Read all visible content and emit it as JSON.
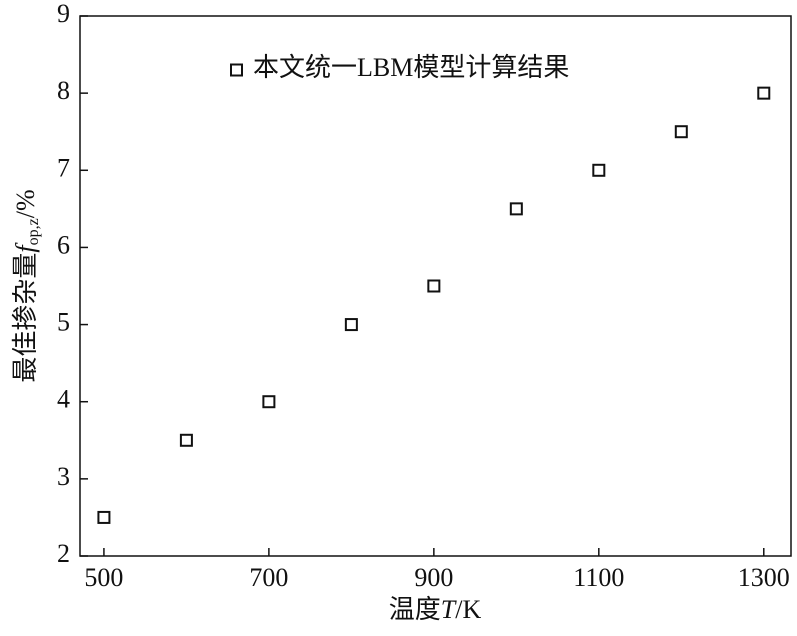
{
  "chart_data": {
    "type": "scatter",
    "xlabel": {
      "text": "温度",
      "var": "T",
      "unit": "/K"
    },
    "ylabel": {
      "text": "最佳掺杂量",
      "var": "f",
      "sub": "op,z",
      "unit": "/%"
    },
    "series": [
      {
        "name": "本文统一LBM模型计算结果",
        "color": "#111111",
        "marker": "square",
        "x": [
          500,
          600,
          700,
          800,
          900,
          1000,
          1100,
          1200,
          1300
        ],
        "values": [
          2.5,
          3.5,
          4,
          5,
          5.5,
          6.5,
          7,
          7.5,
          8
        ]
      }
    ],
    "xlim": [
      471,
      1333
    ],
    "xticks": [
      500,
      700,
      900,
      1100,
      1300
    ],
    "ylim": [
      2,
      9
    ],
    "yticks": [
      2,
      3,
      4,
      5,
      6,
      7,
      8,
      9
    ],
    "grid": false,
    "legend": "upper left"
  }
}
